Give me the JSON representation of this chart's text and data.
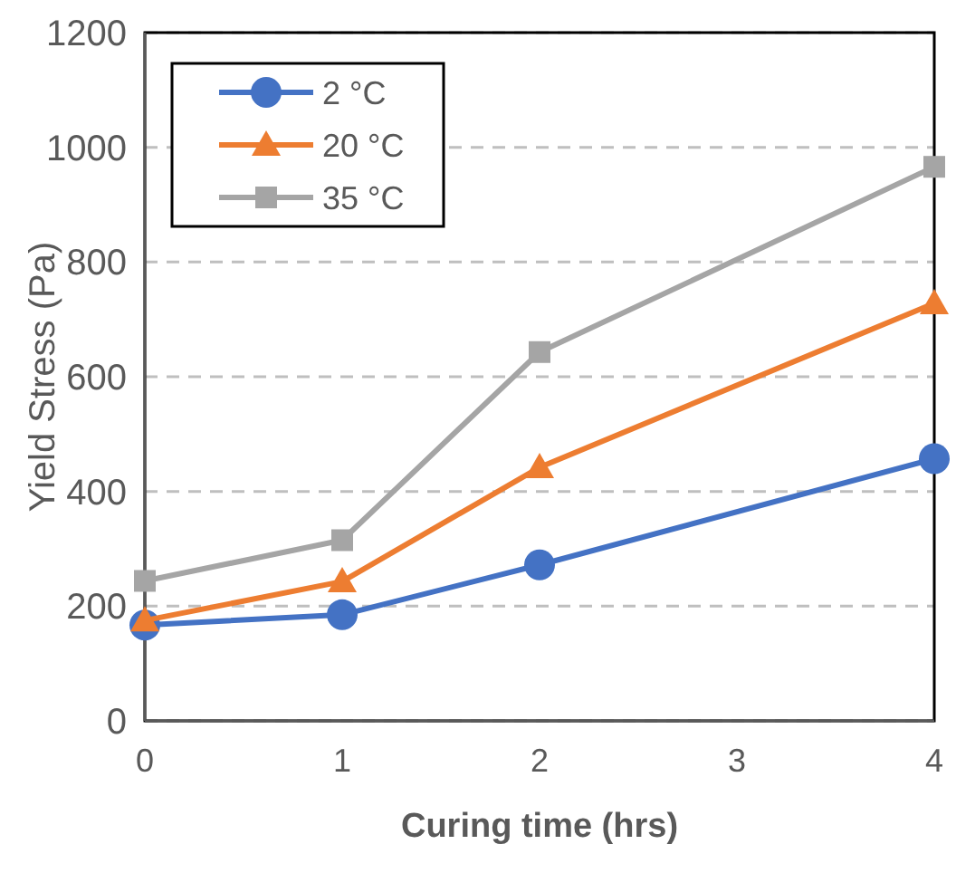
{
  "chart_data": {
    "type": "line",
    "xlabel": "Curing time (hrs)",
    "ylabel": "Yield Stress (Pa)",
    "x": [
      0,
      1,
      2,
      4
    ],
    "series": [
      {
        "name": "2 °C",
        "color": "#4472c4",
        "marker": "circle",
        "values": [
          167,
          185,
          272,
          457
        ]
      },
      {
        "name": "20 °C",
        "color": "#ed7d31",
        "marker": "triangle",
        "values": [
          175,
          243,
          442,
          728
        ]
      },
      {
        "name": "35 °C",
        "color": "#a5a5a5",
        "marker": "square",
        "values": [
          244,
          315,
          643,
          966
        ]
      }
    ],
    "xlim": [
      0,
      4
    ],
    "xticks": [
      0,
      1,
      2,
      3,
      4
    ],
    "ylim": [
      0,
      1200
    ],
    "yticks": [
      0,
      200,
      400,
      600,
      800,
      1000,
      1200
    ],
    "grid": "y",
    "legend": "top left",
    "line_style": "solid"
  }
}
